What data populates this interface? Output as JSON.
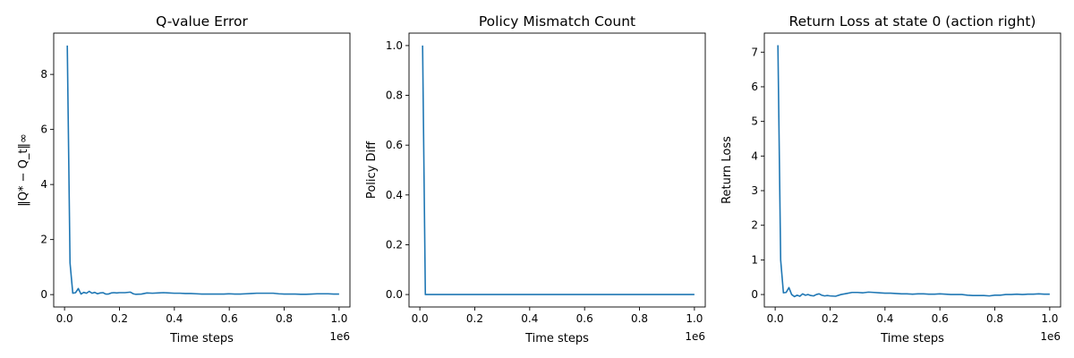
{
  "chart_data": [
    {
      "type": "line",
      "title": "Q-value Error",
      "xlabel": "Time steps",
      "ylabel": "‖Q* − Q_t‖∞",
      "x_offset_label": "1e6",
      "xlim": [
        -0.0395,
        1.0395
      ],
      "ylim": [
        -0.45,
        9.5
      ],
      "xticks": [
        0.0,
        0.2,
        0.4,
        0.6,
        0.8,
        1.0
      ],
      "xtick_labels": [
        "0.0",
        "0.2",
        "0.4",
        "0.6",
        "0.8",
        "1.0"
      ],
      "yticks": [
        0,
        2,
        4,
        6,
        8
      ],
      "ytick_labels": [
        "0",
        "2",
        "4",
        "6",
        "8"
      ],
      "grid": false,
      "series": [
        {
          "color": "#1f77b4",
          "x": [
            0.01,
            0.02,
            0.03,
            0.04,
            0.05,
            0.06,
            0.07,
            0.08,
            0.09,
            0.1,
            0.11,
            0.12,
            0.13,
            0.14,
            0.15,
            0.16,
            0.17,
            0.18,
            0.19,
            0.2,
            0.22,
            0.24,
            0.25,
            0.26,
            0.28,
            0.3,
            0.32,
            0.34,
            0.36,
            0.38,
            0.4,
            0.42,
            0.44,
            0.46,
            0.48,
            0.5,
            0.52,
            0.54,
            0.56,
            0.58,
            0.6,
            0.62,
            0.64,
            0.66,
            0.68,
            0.7,
            0.72,
            0.74,
            0.76,
            0.78,
            0.8,
            0.82,
            0.84,
            0.86,
            0.88,
            0.9,
            0.92,
            0.94,
            0.96,
            0.98,
            1.0
          ],
          "y": [
            9.05,
            1.15,
            0.05,
            0.07,
            0.22,
            0.02,
            0.08,
            0.05,
            0.12,
            0.05,
            0.08,
            0.03,
            0.06,
            0.07,
            0.02,
            0.02,
            0.06,
            0.07,
            0.06,
            0.07,
            0.07,
            0.09,
            0.03,
            0.01,
            0.02,
            0.06,
            0.05,
            0.06,
            0.07,
            0.06,
            0.05,
            0.05,
            0.04,
            0.04,
            0.03,
            0.02,
            0.02,
            0.02,
            0.02,
            0.02,
            0.03,
            0.02,
            0.02,
            0.03,
            0.04,
            0.05,
            0.05,
            0.05,
            0.05,
            0.03,
            0.02,
            0.02,
            0.02,
            0.01,
            0.01,
            0.02,
            0.03,
            0.03,
            0.03,
            0.02,
            0.02
          ]
        }
      ]
    },
    {
      "type": "line",
      "title": "Policy Mismatch Count",
      "xlabel": "Time steps",
      "ylabel": "Policy Diff",
      "x_offset_label": "1e6",
      "xlim": [
        -0.0395,
        1.0395
      ],
      "ylim": [
        -0.05,
        1.05
      ],
      "xticks": [
        0.0,
        0.2,
        0.4,
        0.6,
        0.8,
        1.0
      ],
      "xtick_labels": [
        "0.0",
        "0.2",
        "0.4",
        "0.6",
        "0.8",
        "1.0"
      ],
      "yticks": [
        0.0,
        0.2,
        0.4,
        0.6,
        0.8,
        1.0
      ],
      "ytick_labels": [
        "0.0",
        "0.2",
        "0.4",
        "0.6",
        "0.8",
        "1.0"
      ],
      "grid": false,
      "series": [
        {
          "color": "#1f77b4",
          "x": [
            0.01,
            0.02,
            0.1,
            0.3,
            0.5,
            0.7,
            0.9,
            1.0
          ],
          "y": [
            1.0,
            0.0,
            0.0,
            0.0,
            0.0,
            0.0,
            0.0,
            0.0
          ]
        }
      ]
    },
    {
      "type": "line",
      "title": "Return Loss at state 0 (action right)",
      "xlabel": "Time steps",
      "ylabel": "Return Loss",
      "x_offset_label": "1e6",
      "xlim": [
        -0.0395,
        1.0395
      ],
      "ylim": [
        -0.36,
        7.55
      ],
      "xticks": [
        0.0,
        0.2,
        0.4,
        0.6,
        0.8,
        1.0
      ],
      "xtick_labels": [
        "0.0",
        "0.2",
        "0.4",
        "0.6",
        "0.8",
        "1.0"
      ],
      "yticks": [
        0,
        1,
        2,
        3,
        4,
        5,
        6,
        7
      ],
      "ytick_labels": [
        "0",
        "1",
        "2",
        "3",
        "4",
        "5",
        "6",
        "7"
      ],
      "grid": false,
      "series": [
        {
          "color": "#1f77b4",
          "x": [
            0.01,
            0.02,
            0.03,
            0.04,
            0.05,
            0.06,
            0.07,
            0.08,
            0.09,
            0.1,
            0.11,
            0.12,
            0.13,
            0.14,
            0.15,
            0.16,
            0.17,
            0.18,
            0.19,
            0.2,
            0.22,
            0.24,
            0.26,
            0.28,
            0.3,
            0.32,
            0.34,
            0.36,
            0.38,
            0.4,
            0.42,
            0.44,
            0.46,
            0.48,
            0.5,
            0.52,
            0.54,
            0.56,
            0.58,
            0.6,
            0.62,
            0.64,
            0.66,
            0.68,
            0.7,
            0.72,
            0.74,
            0.76,
            0.78,
            0.8,
            0.82,
            0.84,
            0.86,
            0.88,
            0.9,
            0.92,
            0.94,
            0.96,
            0.98,
            1.0
          ],
          "y": [
            7.2,
            1.0,
            0.05,
            0.06,
            0.2,
            0.0,
            -0.06,
            -0.02,
            -0.05,
            0.02,
            -0.02,
            0.0,
            -0.03,
            -0.04,
            0.0,
            0.02,
            -0.02,
            -0.04,
            -0.03,
            -0.04,
            -0.05,
            0.0,
            0.03,
            0.06,
            0.06,
            0.05,
            0.07,
            0.06,
            0.05,
            0.04,
            0.04,
            0.03,
            0.02,
            0.02,
            0.01,
            0.02,
            0.02,
            0.01,
            0.01,
            0.02,
            0.01,
            0.0,
            0.0,
            0.0,
            -0.02,
            -0.03,
            -0.03,
            -0.03,
            -0.04,
            -0.02,
            -0.02,
            0.0,
            0.0,
            0.01,
            0.0,
            0.01,
            0.01,
            0.02,
            0.01,
            0.01
          ]
        }
      ]
    }
  ]
}
